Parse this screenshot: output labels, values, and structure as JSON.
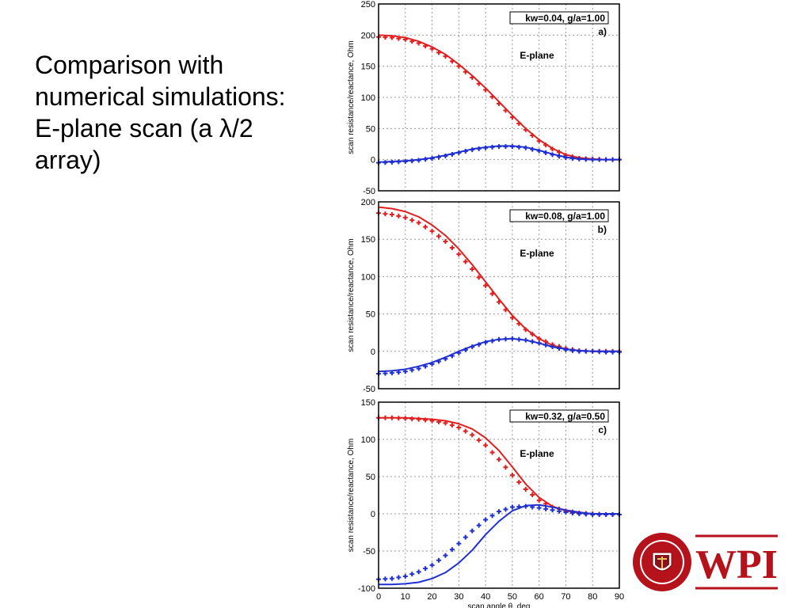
{
  "slide": {
    "title_lines": [
      "Comparison with",
      "numerical simulations:",
      "E-plane scan (a λ/2",
      "array)"
    ]
  },
  "logo": {
    "text": "WPI",
    "seal_text": "WORCESTER POLYTECHNIC INSTITUTE",
    "seal_year": "1865",
    "color": "#b5121b"
  },
  "colors": {
    "resistance": "#e02020",
    "reactance": "#2030d0"
  },
  "chart_data": [
    {
      "type": "line",
      "panel": "a)",
      "annotation_box": "kw=0.04, g/a=1.00",
      "plane_label": "E-plane",
      "ylabel": "scan resistance/reactance, Ohm",
      "xlabel": "",
      "xlim": [
        0,
        90
      ],
      "ylim": [
        -50,
        250
      ],
      "yticks": [
        -50,
        0,
        50,
        100,
        150,
        200,
        250
      ],
      "grid": true,
      "x": [
        0,
        5,
        10,
        15,
        20,
        25,
        30,
        35,
        40,
        45,
        50,
        55,
        60,
        65,
        70,
        75,
        80,
        85,
        90
      ],
      "series": [
        {
          "role": "resistance-line",
          "color": "#e02020",
          "style": "line",
          "values": [
            200,
            199,
            196,
            190,
            181,
            169,
            153,
            135,
            115,
            93,
            71,
            50,
            32,
            18,
            8,
            3,
            1,
            0,
            0
          ]
        },
        {
          "role": "resistance-sim",
          "color": "#e02020",
          "style": "marker",
          "values": [
            197,
            196,
            193,
            187,
            178,
            166,
            150,
            132,
            112,
            90,
            68,
            48,
            30,
            17,
            7,
            2,
            1,
            0,
            0
          ]
        },
        {
          "role": "reactance-line",
          "color": "#2030d0",
          "style": "line",
          "values": [
            -4,
            -3,
            -2,
            0,
            3,
            7,
            12,
            17,
            20,
            22,
            22,
            20,
            15,
            9,
            4,
            1,
            0,
            0,
            0
          ]
        },
        {
          "role": "reactance-sim",
          "color": "#2030d0",
          "style": "marker",
          "values": [
            -5,
            -4,
            -3,
            -1,
            2,
            6,
            11,
            16,
            19,
            21,
            21,
            19,
            14,
            8,
            3,
            1,
            0,
            0,
            0
          ]
        }
      ]
    },
    {
      "type": "line",
      "panel": "b)",
      "annotation_box": "kw=0.08, g/a=1.00",
      "plane_label": "E-plane",
      "ylabel": "scan resistance/reactance, Ohm",
      "xlabel": "",
      "xlim": [
        0,
        90
      ],
      "ylim": [
        -50,
        200
      ],
      "yticks": [
        -50,
        0,
        50,
        100,
        150,
        200
      ],
      "grid": true,
      "x": [
        0,
        5,
        10,
        15,
        20,
        25,
        30,
        35,
        40,
        45,
        50,
        55,
        60,
        65,
        70,
        75,
        80,
        85,
        90
      ],
      "series": [
        {
          "role": "resistance-line",
          "color": "#e02020",
          "style": "line",
          "values": [
            193,
            191,
            187,
            180,
            169,
            155,
            137,
            116,
            93,
            70,
            48,
            30,
            17,
            8,
            3,
            1,
            0,
            0,
            0
          ]
        },
        {
          "role": "resistance-sim",
          "color": "#e02020",
          "style": "marker",
          "values": [
            185,
            183,
            179,
            172,
            161,
            147,
            130,
            110,
            88,
            66,
            45,
            29,
            17,
            9,
            4,
            1,
            0,
            0,
            0
          ]
        },
        {
          "role": "reactance-line",
          "color": "#2030d0",
          "style": "line",
          "values": [
            -27,
            -26,
            -24,
            -20,
            -15,
            -8,
            0,
            7,
            13,
            16,
            17,
            15,
            11,
            6,
            3,
            1,
            0,
            0,
            0
          ]
        },
        {
          "role": "reactance-sim",
          "color": "#2030d0",
          "style": "marker",
          "values": [
            -30,
            -29,
            -27,
            -23,
            -17,
            -10,
            -2,
            6,
            12,
            16,
            17,
            15,
            11,
            6,
            2,
            0,
            0,
            -1,
            -1
          ]
        }
      ]
    },
    {
      "type": "line",
      "panel": "c)",
      "annotation_box": "kw=0.32, g/a=0.50",
      "plane_label": "E-plane",
      "ylabel": "scan resistance/reactance, Ohm",
      "xlabel": "scan angle θ, deg",
      "xlim": [
        0,
        90
      ],
      "ylim": [
        -100,
        150
      ],
      "yticks": [
        -100,
        -50,
        0,
        50,
        100,
        150
      ],
      "xticks": [
        0,
        10,
        20,
        30,
        40,
        50,
        60,
        70,
        80,
        90
      ],
      "grid": true,
      "x": [
        0,
        5,
        10,
        15,
        20,
        25,
        30,
        35,
        40,
        45,
        50,
        55,
        60,
        65,
        70,
        75,
        80,
        85,
        90
      ],
      "series": [
        {
          "role": "resistance-line",
          "color": "#e02020",
          "style": "line",
          "values": [
            129,
            129,
            129,
            128,
            127,
            125,
            121,
            114,
            102,
            85,
            63,
            40,
            22,
            10,
            4,
            1,
            0,
            0,
            0
          ]
        },
        {
          "role": "resistance-sim",
          "color": "#e02020",
          "style": "marker",
          "values": [
            129,
            129,
            128,
            127,
            125,
            122,
            116,
            106,
            92,
            73,
            52,
            33,
            18,
            9,
            4,
            1,
            0,
            -1,
            -1
          ]
        },
        {
          "role": "reactance-line",
          "color": "#2030d0",
          "style": "line",
          "values": [
            -95,
            -95,
            -94,
            -92,
            -87,
            -79,
            -66,
            -49,
            -28,
            -10,
            4,
            11,
            12,
            9,
            5,
            2,
            0,
            0,
            0
          ]
        },
        {
          "role": "reactance-sim",
          "color": "#2030d0",
          "style": "marker",
          "values": [
            -88,
            -87,
            -84,
            -78,
            -69,
            -56,
            -40,
            -23,
            -8,
            3,
            9,
            10,
            8,
            5,
            2,
            0,
            -1,
            -1,
            -1
          ]
        }
      ]
    }
  ]
}
